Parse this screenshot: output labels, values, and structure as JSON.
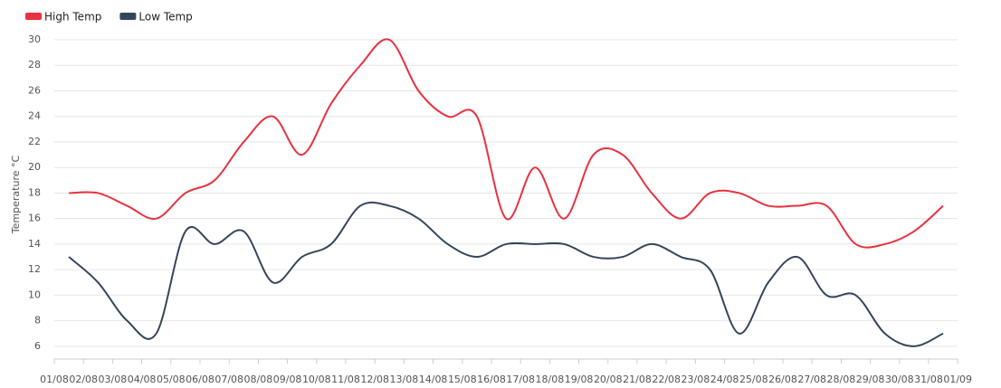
{
  "chart_data": {
    "type": "line",
    "y_label": "Temperature °C",
    "categories": [
      "01/08",
      "02/08",
      "03/08",
      "04/08",
      "05/08",
      "06/08",
      "07/08",
      "08/08",
      "09/08",
      "10/08",
      "11/08",
      "12/08",
      "13/08",
      "14/08",
      "15/08",
      "16/08",
      "17/08",
      "18/08",
      "19/08",
      "20/08",
      "21/08",
      "22/08",
      "23/08",
      "24/08",
      "25/08",
      "26/08",
      "27/08",
      "28/08",
      "29/08",
      "30/08",
      "31/08",
      "01/09"
    ],
    "series": [
      {
        "name": "High Temp",
        "color": "#e8313f",
        "values": [
          18,
          18,
          17,
          16,
          18,
          19,
          22,
          24,
          21,
          25,
          28,
          30,
          26,
          24,
          24,
          16,
          20,
          16,
          21,
          21,
          18,
          16,
          18,
          18,
          17,
          17,
          17,
          14,
          14,
          15,
          17,
          null
        ]
      },
      {
        "name": "Low Temp",
        "color": "#34465c",
        "values": [
          13,
          11,
          8,
          7,
          15,
          14,
          15,
          11,
          13,
          14,
          17,
          17,
          16,
          14,
          13,
          14,
          14,
          14,
          13,
          13,
          14,
          13,
          12,
          7,
          11,
          13,
          10,
          10,
          7,
          6,
          7,
          null
        ]
      }
    ],
    "ylim": [
      5,
      30
    ],
    "yticks": [
      6,
      8,
      10,
      12,
      14,
      16,
      18,
      20,
      22,
      24,
      26,
      28,
      30
    ],
    "grid": true
  }
}
